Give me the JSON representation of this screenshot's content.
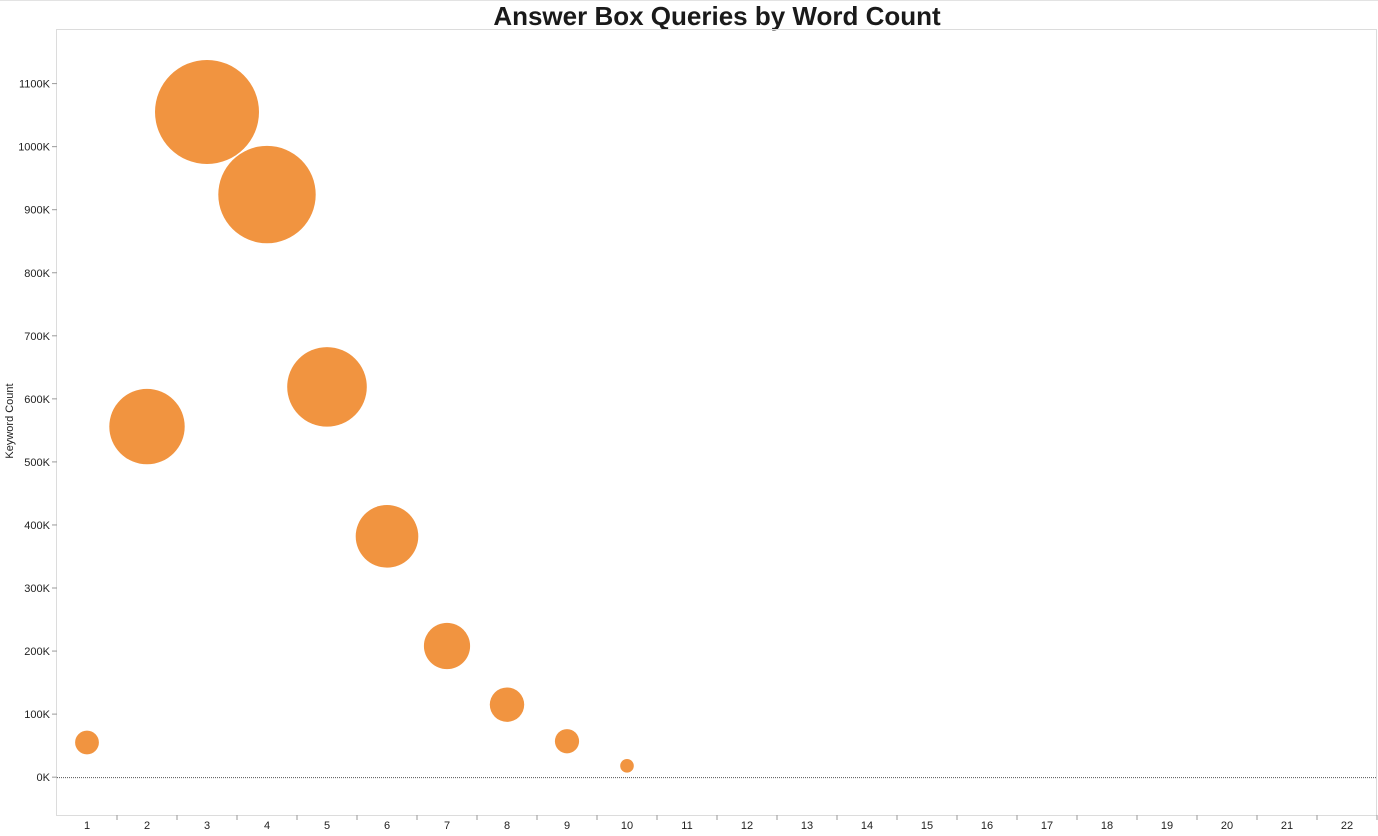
{
  "chart_data": {
    "type": "scatter",
    "title": "Answer Box Queries by Word Count",
    "xlabel": "",
    "ylabel": "Keyword Count",
    "x_categories": [
      "1",
      "2",
      "3",
      "4",
      "5",
      "6",
      "7",
      "8",
      "9",
      "10",
      "11",
      "12",
      "13",
      "14",
      "15",
      "16",
      "17",
      "18",
      "19",
      "20",
      "21",
      "22"
    ],
    "y_ticks": [
      {
        "value": 0,
        "label": "0K"
      },
      {
        "value": 100000,
        "label": "100K"
      },
      {
        "value": 200000,
        "label": "200K"
      },
      {
        "value": 300000,
        "label": "300K"
      },
      {
        "value": 400000,
        "label": "400K"
      },
      {
        "value": 500000,
        "label": "500K"
      },
      {
        "value": 600000,
        "label": "600K"
      },
      {
        "value": 700000,
        "label": "700K"
      },
      {
        "value": 800000,
        "label": "800K"
      },
      {
        "value": 900000,
        "label": "900K"
      },
      {
        "value": 1000000,
        "label": "1000K"
      },
      {
        "value": 1100000,
        "label": "1100K"
      }
    ],
    "ylim": [
      -60000,
      1185000
    ],
    "grid": false,
    "marker_color": "#F19440",
    "bubble_size_encodes": "y",
    "points": [
      {
        "x": 1,
        "y": 55000
      },
      {
        "x": 2,
        "y": 556000
      },
      {
        "x": 3,
        "y": 1055000
      },
      {
        "x": 4,
        "y": 924000
      },
      {
        "x": 5,
        "y": 619000
      },
      {
        "x": 6,
        "y": 382000
      },
      {
        "x": 7,
        "y": 208000
      },
      {
        "x": 8,
        "y": 115000
      },
      {
        "x": 9,
        "y": 57000
      },
      {
        "x": 10,
        "y": 18000
      }
    ]
  }
}
